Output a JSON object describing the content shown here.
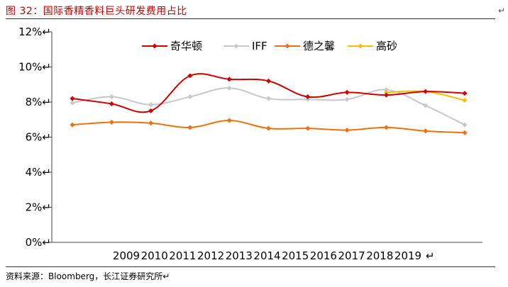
{
  "header": {
    "figure_title": "图 32：国际香精香料巨头研发费用占比",
    "return_mark": "↵"
  },
  "footer": {
    "source": "资料来源：Bloomberg，长江证券研究所↵"
  },
  "chart_data": {
    "type": "line",
    "title": "",
    "xlabel": "",
    "ylabel": "",
    "categories": [
      "2009",
      "2010",
      "2011",
      "2012",
      "2013",
      "2014",
      "2015",
      "2016",
      "2017",
      "2018",
      "2019"
    ],
    "y_tick_labels": [
      "0%↵",
      "2%↵",
      "4%↵",
      "6%↵",
      "8%↵",
      "10%↵",
      "12%↵"
    ],
    "x_trailing_mark": "↵",
    "ylim": [
      0,
      12
    ],
    "y_unit": "%",
    "grid": false,
    "legend_position": "top-center",
    "series": [
      {
        "name": "奇华顿",
        "color": "#d00000",
        "values": [
          8.2,
          7.9,
          7.5,
          9.5,
          9.3,
          9.2,
          8.3,
          8.55,
          8.4,
          8.6,
          8.5
        ]
      },
      {
        "name": "IFF",
        "color": "#c8c8c8",
        "values": [
          7.95,
          8.3,
          7.85,
          8.3,
          8.8,
          8.2,
          8.15,
          8.15,
          8.7,
          7.8,
          6.7
        ]
      },
      {
        "name": "德之馨",
        "color": "#f07010",
        "values": [
          6.7,
          6.85,
          6.8,
          6.55,
          6.95,
          6.5,
          6.5,
          6.4,
          6.55,
          6.35,
          6.25
        ]
      },
      {
        "name": "高砂",
        "color": "#f5c000",
        "values": [
          null,
          null,
          null,
          null,
          null,
          null,
          null,
          null,
          8.55,
          8.6,
          8.1
        ]
      }
    ]
  }
}
